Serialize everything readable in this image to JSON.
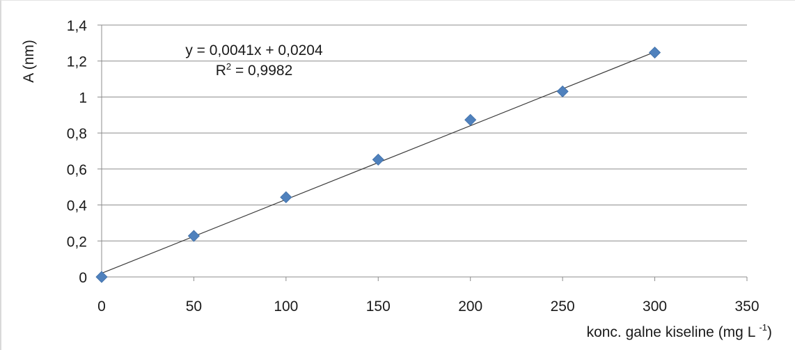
{
  "chart_data": {
    "type": "scatter",
    "title": "",
    "xlabel": "konc. galne kiseline (mg L",
    "xlabel_sup": "-1",
    "xlabel_close": ")",
    "ylabel": "A (nm)",
    "xlim": [
      0,
      350
    ],
    "ylim": [
      0,
      1.4
    ],
    "x_ticks": [
      "0",
      "50",
      "100",
      "150",
      "200",
      "250",
      "300",
      "350"
    ],
    "y_ticks": [
      "0",
      "0,2",
      "0,4",
      "0,6",
      "0,8",
      "1",
      "1,2",
      "1,4"
    ],
    "x": [
      0,
      50,
      100,
      150,
      200,
      250,
      300
    ],
    "y": [
      0,
      0.228,
      0.443,
      0.652,
      0.873,
      1.031,
      1.247
    ],
    "grid": true,
    "marker": "diamond",
    "colors": {
      "marker": "#4f81bd",
      "trendline": "#3a3a3a",
      "grid": "#8c8c8c"
    },
    "trendline": {
      "slope": 0.0041,
      "intercept": 0.0204,
      "x_range": [
        0,
        300
      ],
      "equation": "y = 0,0041x + 0,0204",
      "r2_prefix": "R",
      "r2_sup": "2",
      "r2_value": " = 0,9982"
    }
  }
}
